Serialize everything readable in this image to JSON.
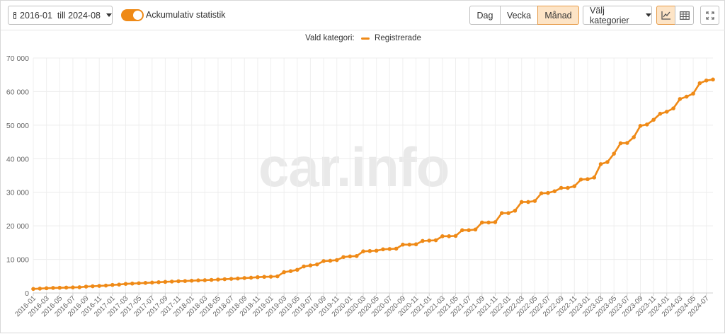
{
  "toolbar": {
    "date_range": "2016-01  till 2024-08",
    "toggle_label": "Ackumulativ statistik",
    "period_day": "Dag",
    "period_week": "Vecka",
    "period_month": "Månad",
    "category_select": "Välj kategorier",
    "active_period": "Månad",
    "active_view": "chart"
  },
  "icons": {
    "calendar": "calendar-icon",
    "line_chart": "line-chart-icon",
    "table": "table-icon",
    "fullscreen": "fullscreen-icon"
  },
  "legend": {
    "prefix": "Vald kategori:",
    "series_name": "Registrerade"
  },
  "watermark": "car.info",
  "colors": {
    "accent": "#ef8a17",
    "active_bg": "#fde4c6",
    "grid": "#ececec"
  },
  "chart_data": {
    "type": "line",
    "title": "",
    "xlabel": "",
    "ylabel": "",
    "ylim": [
      0,
      70000
    ],
    "yticks": [
      "0",
      "10 000",
      "20 000",
      "30 000",
      "40 000",
      "50 000",
      "60 000",
      "70 000"
    ],
    "grid": true,
    "legend_position": "top-center",
    "x": [
      "2016-01",
      "2016-02",
      "2016-03",
      "2016-04",
      "2016-05",
      "2016-06",
      "2016-07",
      "2016-08",
      "2016-09",
      "2016-10",
      "2016-11",
      "2016-12",
      "2017-01",
      "2017-02",
      "2017-03",
      "2017-04",
      "2017-05",
      "2017-06",
      "2017-07",
      "2017-08",
      "2017-09",
      "2017-10",
      "2017-11",
      "2017-12",
      "2018-01",
      "2018-02",
      "2018-03",
      "2018-04",
      "2018-05",
      "2018-06",
      "2018-07",
      "2018-08",
      "2018-09",
      "2018-10",
      "2018-11",
      "2018-12",
      "2019-01",
      "2019-02",
      "2019-03",
      "2019-04",
      "2019-05",
      "2019-06",
      "2019-07",
      "2019-08",
      "2019-09",
      "2019-10",
      "2019-11",
      "2019-12",
      "2020-01",
      "2020-02",
      "2020-03",
      "2020-04",
      "2020-05",
      "2020-06",
      "2020-07",
      "2020-08",
      "2020-09",
      "2020-10",
      "2020-11",
      "2020-12",
      "2021-01",
      "2021-02",
      "2021-03",
      "2021-04",
      "2021-05",
      "2021-06",
      "2021-07",
      "2021-08",
      "2021-09",
      "2021-10",
      "2021-11",
      "2021-12",
      "2022-01",
      "2022-02",
      "2022-03",
      "2022-04",
      "2022-05",
      "2022-06",
      "2022-07",
      "2022-08",
      "2022-09",
      "2022-10",
      "2022-11",
      "2022-12",
      "2023-01",
      "2023-02",
      "2023-03",
      "2023-04",
      "2023-05",
      "2023-06",
      "2023-07",
      "2023-08",
      "2023-09",
      "2023-10",
      "2023-11",
      "2023-12",
      "2024-01",
      "2024-02",
      "2024-03",
      "2024-04",
      "2024-05",
      "2024-06",
      "2024-07",
      "2024-08"
    ],
    "tick_labels": [
      "2016-01",
      "2016-03",
      "2016-05",
      "2016-07",
      "2016-09",
      "2016-11",
      "2017-01",
      "2017-03",
      "2017-05",
      "2017-07",
      "2017-09",
      "2017-11",
      "2018-01",
      "2018-03",
      "2018-05",
      "2018-07",
      "2018-09",
      "2018-11",
      "2019-01",
      "2019-03",
      "2019-05",
      "2019-07",
      "2019-09",
      "2019-11",
      "2020-01",
      "2020-03",
      "2020-05",
      "2020-07",
      "2020-09",
      "2020-11",
      "2021-01",
      "2021-03",
      "2021-05",
      "2021-07",
      "2021-09",
      "2021-11",
      "2022-01",
      "2022-03",
      "2022-05",
      "2022-07",
      "2022-09",
      "2022-11",
      "2023-01",
      "2023-03",
      "2023-05",
      "2023-07",
      "2023-09",
      "2023-11",
      "2024-01",
      "2024-03",
      "2024-05",
      "2024-07"
    ],
    "series": [
      {
        "name": "Registrerade",
        "color": "#ef8a17",
        "values": [
          1200,
          1300,
          1400,
          1500,
          1550,
          1600,
          1650,
          1700,
          1900,
          2000,
          2100,
          2200,
          2400,
          2500,
          2700,
          2800,
          2900,
          3000,
          3100,
          3200,
          3300,
          3400,
          3500,
          3550,
          3650,
          3750,
          3800,
          3900,
          4000,
          4100,
          4200,
          4300,
          4450,
          4550,
          4700,
          4800,
          4850,
          4950,
          6200,
          6500,
          6900,
          7900,
          8200,
          8500,
          9500,
          9600,
          9800,
          10700,
          10900,
          11000,
          12400,
          12500,
          12600,
          13000,
          13100,
          13200,
          14400,
          14400,
          14500,
          15500,
          15600,
          15700,
          16900,
          16900,
          17000,
          18700,
          18700,
          18900,
          21000,
          21000,
          21100,
          23800,
          23800,
          24500,
          27100,
          27100,
          27400,
          29700,
          29800,
          30300,
          31300,
          31300,
          31800,
          33800,
          33900,
          34400,
          38400,
          39000,
          41500,
          44600,
          44700,
          46400,
          49800,
          50200,
          51600,
          53400,
          54000,
          55000,
          57800,
          58500,
          59400,
          62500,
          63300,
          63600
        ]
      }
    ]
  }
}
